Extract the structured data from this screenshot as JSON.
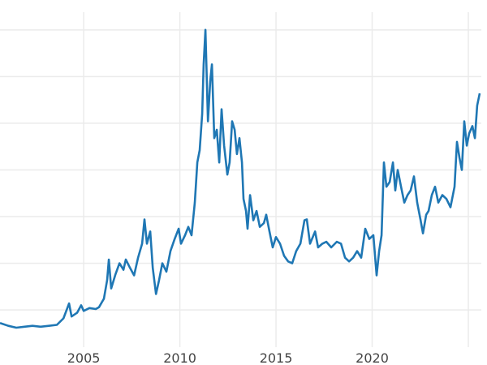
{
  "chart_data": {
    "type": "line",
    "title": "",
    "xlabel": "",
    "ylabel": "",
    "xlim": [
      2000.65,
      2025.97
    ],
    "ylim": [
      1.1,
      38.2
    ],
    "grid": true,
    "legend": "none",
    "color": "#1f77b4",
    "grid_color": "#ebebeb",
    "xticks": [
      2005,
      2010,
      2015,
      2020,
      2025
    ],
    "xtick_labels": [
      "2005",
      "2010",
      "2015",
      "2020",
      ""
    ],
    "yticks": [
      5,
      10,
      15,
      20,
      25,
      30,
      35
    ],
    "series": [
      {
        "x": [
          2000.65,
          2001.08,
          2001.5,
          2001.92,
          2002.34,
          2002.76,
          2003.19,
          2003.61,
          2003.95,
          2004.24,
          2004.37,
          2004.66,
          2004.87,
          2005.0,
          2005.3,
          2005.63,
          2005.8,
          2006.05,
          2006.22,
          2006.31,
          2006.43,
          2006.65,
          2006.86,
          2007.07,
          2007.19,
          2007.41,
          2007.62,
          2007.83,
          2008.04,
          2008.16,
          2008.29,
          2008.46,
          2008.59,
          2008.76,
          2008.92,
          2009.09,
          2009.3,
          2009.51,
          2009.73,
          2009.94,
          2010.06,
          2010.27,
          2010.44,
          2010.61,
          2010.78,
          2010.91,
          2011.03,
          2011.16,
          2011.24,
          2011.33,
          2011.46,
          2011.58,
          2011.67,
          2011.79,
          2011.92,
          2012.05,
          2012.17,
          2012.3,
          2012.47,
          2012.59,
          2012.72,
          2012.85,
          2012.97,
          2013.1,
          2013.23,
          2013.31,
          2013.44,
          2013.52,
          2013.65,
          2013.82,
          2013.99,
          2014.16,
          2014.37,
          2014.49,
          2014.66,
          2014.83,
          2015.0,
          2015.21,
          2015.42,
          2015.63,
          2015.84,
          2016.05,
          2016.27,
          2016.48,
          2016.6,
          2016.77,
          2017.03,
          2017.19,
          2017.41,
          2017.62,
          2017.87,
          2018.16,
          2018.38,
          2018.59,
          2018.8,
          2019.01,
          2019.22,
          2019.43,
          2019.64,
          2019.85,
          2020.06,
          2020.23,
          2020.36,
          2020.49,
          2020.61,
          2020.74,
          2020.91,
          2021.08,
          2021.2,
          2021.33,
          2021.5,
          2021.67,
          2021.84,
          2022.0,
          2022.17,
          2022.34,
          2022.51,
          2022.64,
          2022.81,
          2022.93,
          2023.1,
          2023.27,
          2023.44,
          2023.65,
          2023.86,
          2024.07,
          2024.28,
          2024.41,
          2024.54,
          2024.66,
          2024.79,
          2024.92,
          2025.04,
          2025.21,
          2025.34,
          2025.46,
          2025.59
        ],
        "y": [
          3.6,
          3.3,
          3.1,
          3.2,
          3.3,
          3.2,
          3.3,
          3.4,
          4.1,
          5.7,
          4.3,
          4.7,
          5.5,
          4.9,
          5.2,
          5.1,
          5.3,
          6.2,
          8.2,
          10.4,
          7.3,
          8.8,
          10.0,
          9.3,
          10.4,
          9.5,
          8.7,
          10.6,
          12.1,
          14.7,
          12.1,
          13.4,
          9.5,
          6.7,
          8.2,
          10.0,
          9.1,
          11.3,
          12.6,
          13.7,
          12.1,
          13.0,
          13.9,
          13.0,
          16.5,
          20.8,
          22.1,
          26.0,
          31.3,
          35.0,
          25.2,
          29.5,
          31.3,
          23.4,
          24.3,
          20.8,
          26.5,
          22.6,
          19.5,
          20.8,
          25.2,
          24.3,
          21.7,
          23.4,
          20.8,
          16.9,
          15.6,
          13.7,
          17.3,
          14.6,
          15.6,
          13.9,
          14.3,
          15.2,
          13.4,
          11.7,
          12.8,
          12.1,
          10.8,
          10.2,
          10.0,
          11.3,
          12.1,
          14.6,
          14.7,
          12.1,
          13.4,
          11.7,
          12.1,
          12.3,
          11.7,
          12.3,
          12.1,
          10.6,
          10.2,
          10.6,
          11.3,
          10.6,
          13.7,
          12.6,
          13.0,
          8.7,
          11.3,
          13.0,
          20.8,
          18.2,
          18.7,
          20.8,
          17.8,
          20.0,
          18.2,
          16.5,
          17.3,
          17.8,
          19.3,
          16.5,
          14.7,
          13.2,
          15.2,
          15.6,
          17.3,
          18.2,
          16.5,
          17.3,
          16.9,
          16.0,
          18.2,
          23.0,
          21.3,
          20.0,
          25.2,
          22.6,
          23.9,
          24.7,
          23.4,
          26.9,
          28.2
        ]
      }
    ]
  }
}
